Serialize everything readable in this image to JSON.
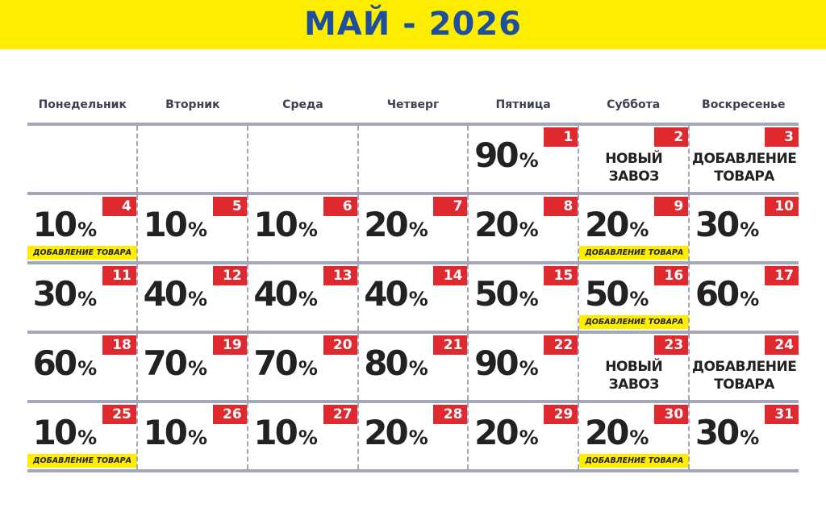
{
  "title": "МАЙ - 2026",
  "weekdays": [
    "Понедельник",
    "Вторник",
    "Среда",
    "Четверг",
    "Пятница",
    "Суббота",
    "Воскресенье"
  ],
  "colors": {
    "header": "#ffed00",
    "title": "#1d4f9c",
    "badge": "#e0282f",
    "grid": "#a3a7b7"
  },
  "weeks": [
    [
      null,
      null,
      null,
      null,
      {
        "day": "1",
        "value": "90",
        "unit": "%"
      },
      {
        "day": "2",
        "lines": [
          "НОВЫЙ",
          "ЗАВОЗ"
        ]
      },
      {
        "day": "3",
        "lines": [
          "ДОБАВЛЕНИЕ",
          "ТОВАРА"
        ]
      }
    ],
    [
      {
        "day": "4",
        "value": "10",
        "unit": "%",
        "tag": "ДОБАВЛЕНИЕ ТОВАРА"
      },
      {
        "day": "5",
        "value": "10",
        "unit": "%"
      },
      {
        "day": "6",
        "value": "10",
        "unit": "%"
      },
      {
        "day": "7",
        "value": "20",
        "unit": "%"
      },
      {
        "day": "8",
        "value": "20",
        "unit": "%"
      },
      {
        "day": "9",
        "value": "20",
        "unit": "%",
        "tag": "ДОБАВЛЕНИЕ ТОВАРА"
      },
      {
        "day": "10",
        "value": "30",
        "unit": "%"
      }
    ],
    [
      {
        "day": "11",
        "value": "30",
        "unit": "%"
      },
      {
        "day": "12",
        "value": "40",
        "unit": "%"
      },
      {
        "day": "13",
        "value": "40",
        "unit": "%"
      },
      {
        "day": "14",
        "value": "40",
        "unit": "%"
      },
      {
        "day": "15",
        "value": "50",
        "unit": "%"
      },
      {
        "day": "16",
        "value": "50",
        "unit": "%",
        "tag": "ДОБАВЛЕНИЕ ТОВАРА"
      },
      {
        "day": "17",
        "value": "60",
        "unit": "%"
      }
    ],
    [
      {
        "day": "18",
        "value": "60",
        "unit": "%"
      },
      {
        "day": "19",
        "value": "70",
        "unit": "%"
      },
      {
        "day": "20",
        "value": "70",
        "unit": "%"
      },
      {
        "day": "21",
        "value": "80",
        "unit": "%"
      },
      {
        "day": "22",
        "value": "90",
        "unit": "%"
      },
      {
        "day": "23",
        "lines": [
          "НОВЫЙ",
          "ЗАВОЗ"
        ]
      },
      {
        "day": "24",
        "lines": [
          "ДОБАВЛЕНИЕ",
          "ТОВАРА"
        ]
      }
    ],
    [
      {
        "day": "25",
        "value": "10",
        "unit": "%",
        "tag": "ДОБАВЛЕНИЕ ТОВАРА"
      },
      {
        "day": "26",
        "value": "10",
        "unit": "%"
      },
      {
        "day": "27",
        "value": "10",
        "unit": "%"
      },
      {
        "day": "28",
        "value": "20",
        "unit": "%"
      },
      {
        "day": "29",
        "value": "20",
        "unit": "%"
      },
      {
        "day": "30",
        "value": "20",
        "unit": "%",
        "tag": "ДОБАВЛЕНИЕ ТОВАРА"
      },
      {
        "day": "31",
        "value": "30",
        "unit": "%"
      }
    ]
  ]
}
